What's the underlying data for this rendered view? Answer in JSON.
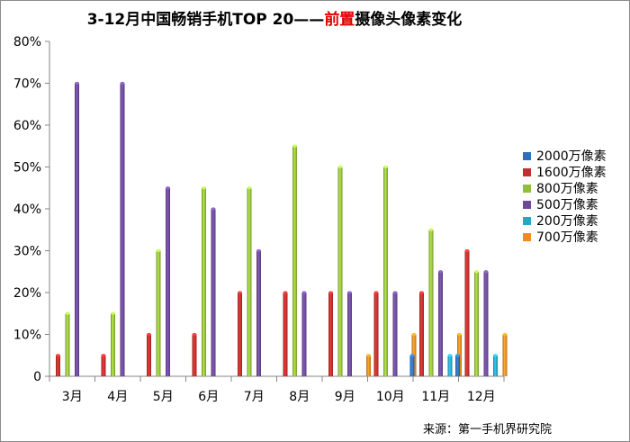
{
  "chart_data": {
    "type": "bar",
    "title_main": "3-12月中国畅销手机TOP 20——",
    "title_highlight": "前置",
    "title_tail": "摄像头像素变化",
    "categories": [
      "3月",
      "4月",
      "5月",
      "6月",
      "7月",
      "8月",
      "9月",
      "10月",
      "11月",
      "12月"
    ],
    "y_ticks": [
      "0",
      "10%",
      "20%",
      "30%",
      "40%",
      "50%",
      "60%",
      "70%",
      "80%"
    ],
    "ylim": [
      0,
      80
    ],
    "grid": false,
    "legend_position": "right",
    "series": [
      {
        "name": "2000万像素",
        "color": "#2e6fb7",
        "values": [
          0,
          0,
          0,
          0,
          0,
          0,
          0,
          0,
          5,
          5
        ]
      },
      {
        "name": "1600万像素",
        "color": "#c0302c",
        "values": [
          5,
          5,
          10,
          10,
          20,
          20,
          20,
          20,
          20,
          30
        ]
      },
      {
        "name": "800万像素",
        "color": "#93bd3c",
        "values": [
          15,
          15,
          30,
          45,
          45,
          55,
          50,
          50,
          35,
          25
        ]
      },
      {
        "name": "500万像素",
        "color": "#6c4a98",
        "values": [
          70,
          70,
          45,
          40,
          30,
          20,
          20,
          20,
          25,
          25
        ]
      },
      {
        "name": "200万像素",
        "color": "#2aa3c4",
        "values": [
          0,
          0,
          0,
          0,
          0,
          0,
          0,
          0,
          5,
          5
        ]
      },
      {
        "name": "700万像素",
        "color": "#f08a22",
        "values": [
          0,
          0,
          0,
          0,
          0,
          0,
          5,
          10,
          10,
          10
        ]
      }
    ]
  },
  "source": "来源：第一手机界研究院"
}
